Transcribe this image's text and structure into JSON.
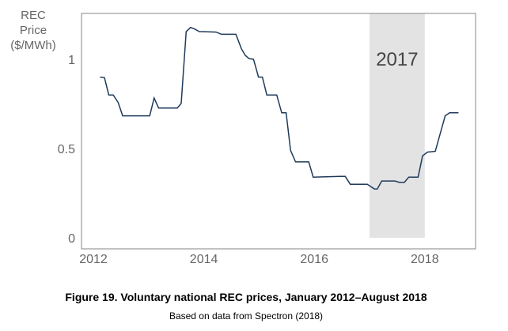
{
  "chart_data": {
    "type": "line",
    "title": "Figure 19. Voluntary national REC prices, January 2012–August 2018",
    "subtitle": "Based on data from Spectron (2018)",
    "ylabel_lines": [
      "REC",
      "Price",
      "($/MWh)"
    ],
    "xlabel": "",
    "xlim": [
      2012,
      2019
    ],
    "ylim": [
      0,
      1.25
    ],
    "x_ticks": [
      2012,
      2014,
      2016,
      2018
    ],
    "x_tick_labels": [
      "2012",
      "2014",
      "2016",
      "2018"
    ],
    "y_ticks": [
      0,
      0.5,
      1
    ],
    "y_tick_labels": [
      "0",
      "0.5",
      "1"
    ],
    "grid": false,
    "highlight": {
      "label": "2017",
      "from": 2017,
      "to": 2018,
      "color": "#e3e3e3"
    },
    "series": [
      {
        "name": "REC price",
        "color": "#1f3a5a",
        "x": [
          2012.12,
          2012.2,
          2012.28,
          2012.36,
          2012.45,
          2012.53,
          2013.02,
          2013.1,
          2013.18,
          2013.52,
          2013.59,
          2013.68,
          2013.76,
          2013.83,
          2013.92,
          2014.22,
          2014.32,
          2014.58,
          2014.68,
          2014.75,
          2014.82,
          2014.9,
          2014.99,
          2015.06,
          2015.14,
          2015.32,
          2015.41,
          2015.49,
          2015.57,
          2015.66,
          2015.9,
          2015.98,
          2016.47,
          2016.56,
          2016.65,
          2016.96,
          2017.09,
          2017.14,
          2017.22,
          2017.46,
          2017.54,
          2017.63,
          2017.71,
          2017.88,
          2017.96,
          2018.05,
          2018.19,
          2018.37,
          2018.45,
          2018.61
        ],
        "y": [
          0.9,
          0.897,
          0.8,
          0.8,
          0.757,
          0.683,
          0.683,
          0.783,
          0.727,
          0.727,
          0.753,
          1.155,
          1.178,
          1.17,
          1.155,
          1.152,
          1.14,
          1.14,
          1.059,
          1.022,
          1.003,
          1.0,
          0.9,
          0.9,
          0.8,
          0.8,
          0.7,
          0.7,
          0.49,
          0.425,
          0.425,
          0.34,
          0.344,
          0.344,
          0.3,
          0.3,
          0.273,
          0.273,
          0.318,
          0.318,
          0.31,
          0.31,
          0.34,
          0.34,
          0.459,
          0.48,
          0.484,
          0.683,
          0.7,
          0.7
        ]
      }
    ]
  }
}
